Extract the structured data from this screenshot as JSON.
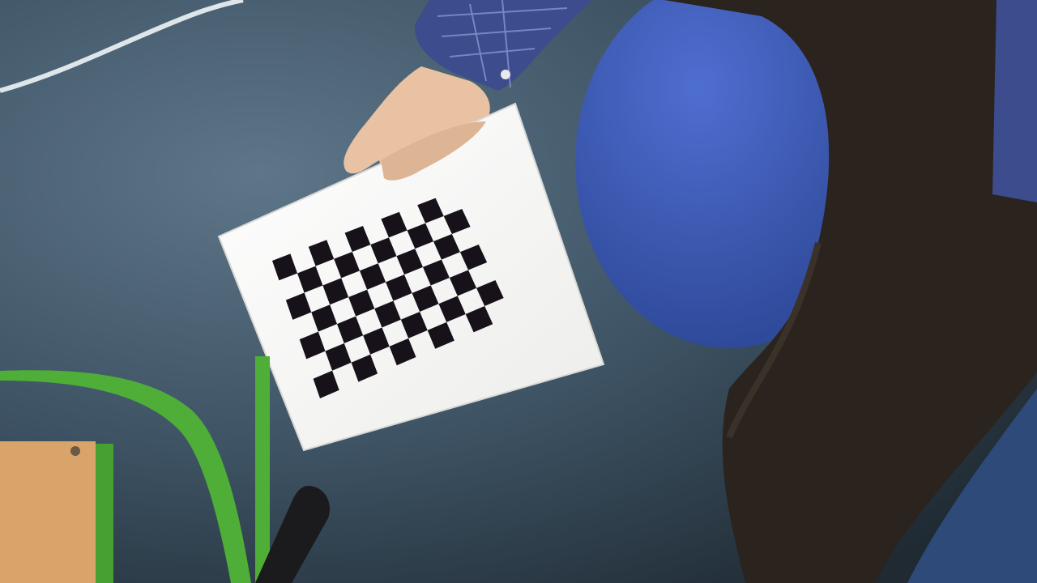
{
  "scene": {
    "description_kind": "photo",
    "board": {
      "grid_rows": 7,
      "grid_cols": 10,
      "square_color": "#17121a",
      "board_color": "#f8f8f6"
    },
    "colors": {
      "floor": "#3f5566",
      "floor_dark": "#27333d",
      "cushion": "#3a59b5",
      "trousers": "#2b231d",
      "sleeve": "#3c4c8c",
      "chair_green": "#4fae37",
      "wood": "#d9a46a",
      "skin": "#e8c2a2"
    }
  }
}
